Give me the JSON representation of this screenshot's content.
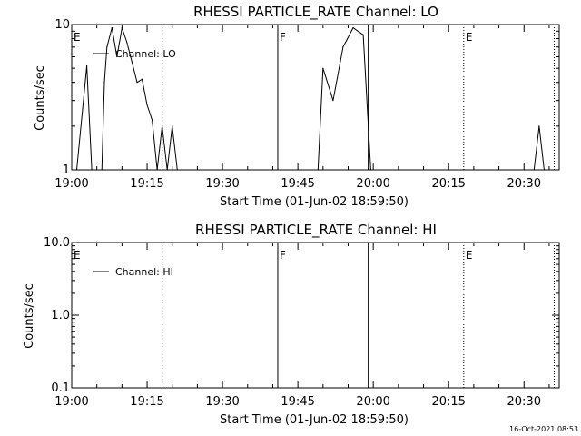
{
  "chart_data": [
    {
      "type": "line",
      "title": "RHESSI PARTICLE_RATE Channel: LO",
      "xlabel": "Start Time (01-Jun-02 18:59:50)",
      "ylabel": "Counts/sec",
      "y_scale": "log",
      "ylim": [
        1,
        10
      ],
      "y_ticks": [
        "1",
        "10"
      ],
      "xlim": [
        "19:00",
        "20:37"
      ],
      "x_ticks": [
        "19:00",
        "19:15",
        "19:30",
        "19:45",
        "20:00",
        "20:15",
        "20:30"
      ],
      "legend": {
        "label": "Channel: LO",
        "position": "top-left"
      },
      "grid": false,
      "markers": [
        {
          "time": "19:00",
          "label": "E",
          "style": "none"
        },
        {
          "time": "19:18",
          "label": "",
          "style": "dotted"
        },
        {
          "time": "19:41",
          "label": "F",
          "style": "solid"
        },
        {
          "time": "19:59",
          "label": "",
          "style": "solid"
        },
        {
          "time": "20:18",
          "label": "E",
          "style": "dotted"
        },
        {
          "time": "20:36",
          "label": "",
          "style": "dotted"
        }
      ],
      "series": [
        {
          "name": "Channel: LO",
          "points": [
            [
              "19:01",
              1
            ],
            [
              "19:03",
              5.2
            ],
            [
              "19:04",
              1
            ],
            [
              "19:06",
              1
            ],
            [
              "19:06.5",
              4
            ],
            [
              "19:07",
              7
            ],
            [
              "19:08",
              9.5
            ],
            [
              "19:09",
              6
            ],
            [
              "19:10",
              9.5
            ],
            [
              "19:11",
              7.5
            ],
            [
              "19:12",
              5.5
            ],
            [
              "19:13",
              4
            ],
            [
              "19:14",
              4.2
            ],
            [
              "19:15",
              2.8
            ],
            [
              "19:16",
              2.2
            ],
            [
              "19:17",
              1
            ],
            [
              "19:18",
              2
            ],
            [
              "19:19",
              1
            ],
            [
              "19:20",
              2
            ],
            [
              "19:21",
              1
            ],
            [
              "19:49",
              1
            ],
            [
              "19:50",
              5
            ],
            [
              "19:52",
              3
            ],
            [
              "19:54",
              7
            ],
            [
              "19:56",
              9.5
            ],
            [
              "19:58",
              8.5
            ],
            [
              "19:59.5",
              1
            ],
            [
              "20:32",
              1
            ],
            [
              "20:33",
              2
            ],
            [
              "20:34",
              1
            ]
          ]
        }
      ]
    },
    {
      "type": "line",
      "title": "RHESSI PARTICLE_RATE Channel: HI",
      "xlabel": "Start Time (01-Jun-02 18:59:50)",
      "ylabel": "Counts/sec",
      "y_scale": "log",
      "ylim": [
        0.1,
        10
      ],
      "y_ticks": [
        "0.1",
        "1.0",
        "10.0"
      ],
      "xlim": [
        "19:00",
        "20:37"
      ],
      "x_ticks": [
        "19:00",
        "19:15",
        "19:30",
        "19:45",
        "20:00",
        "20:15",
        "20:30"
      ],
      "legend": {
        "label": "Channel: HI",
        "position": "top-left"
      },
      "grid": false,
      "markers": [
        {
          "time": "19:00",
          "label": "E",
          "style": "none"
        },
        {
          "time": "19:18",
          "label": "",
          "style": "dotted"
        },
        {
          "time": "19:41",
          "label": "F",
          "style": "solid"
        },
        {
          "time": "19:59",
          "label": "",
          "style": "solid"
        },
        {
          "time": "20:18",
          "label": "E",
          "style": "dotted"
        },
        {
          "time": "20:36",
          "label": "",
          "style": "dotted"
        }
      ],
      "series": [
        {
          "name": "Channel: HI",
          "points": []
        }
      ]
    }
  ],
  "footer": {
    "timestamp": "16-Oct-2021 08:53"
  }
}
